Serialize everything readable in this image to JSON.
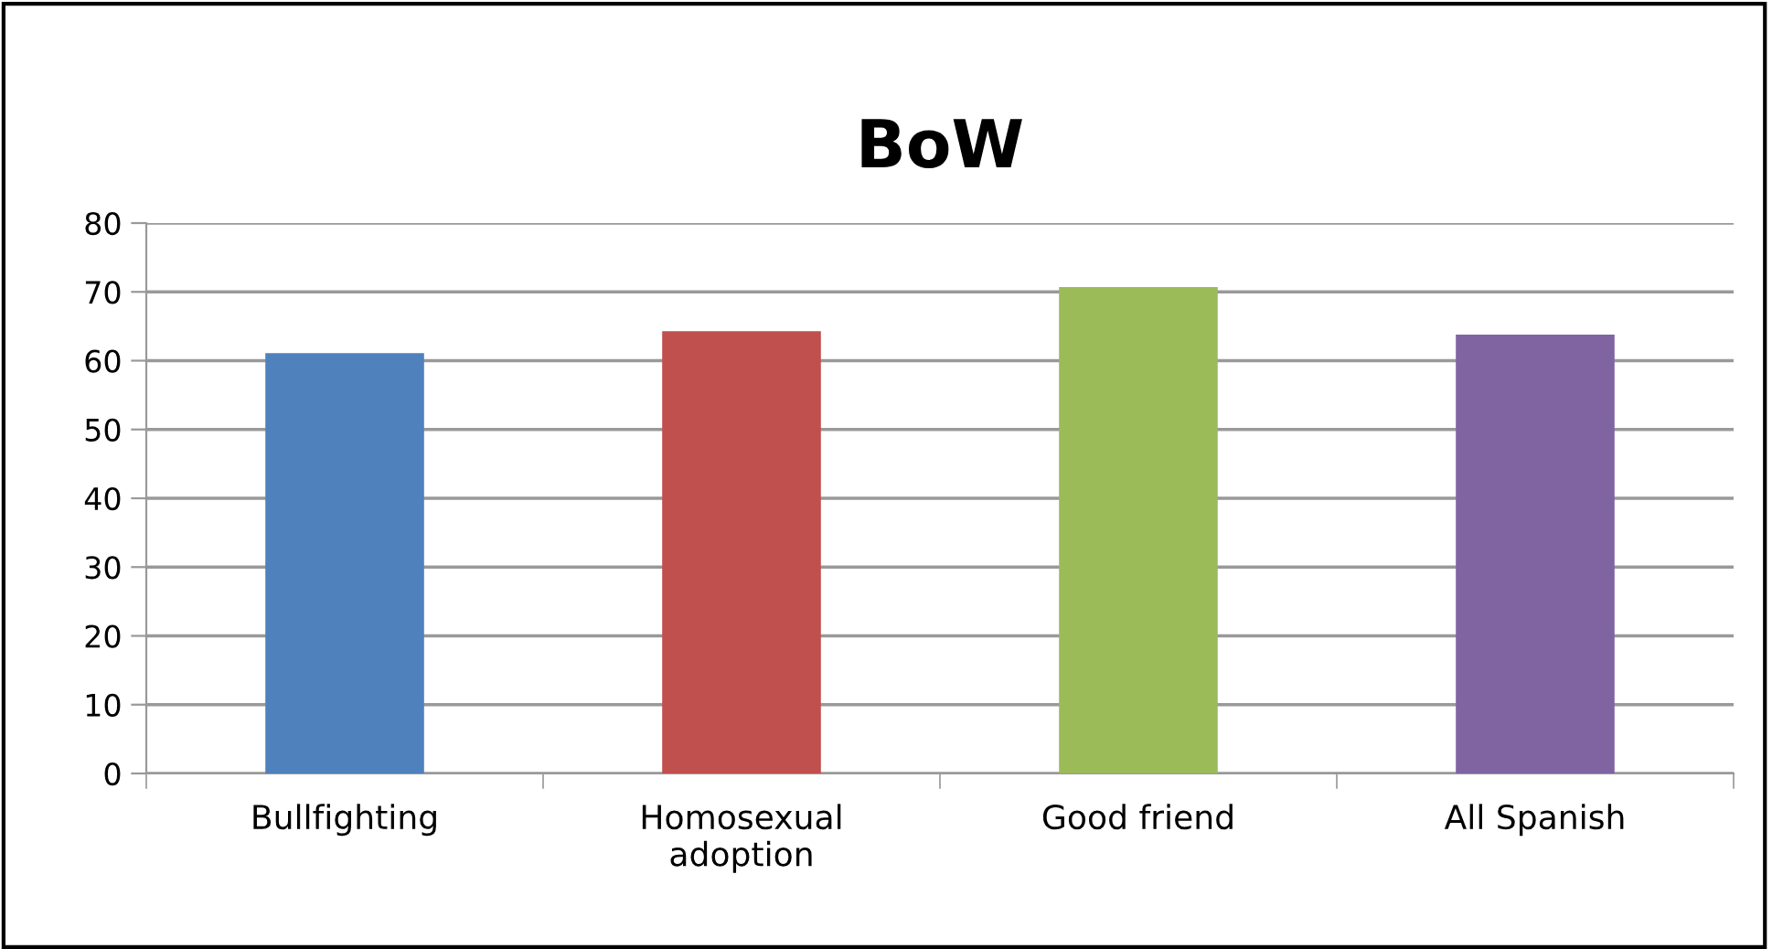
{
  "chart_data": {
    "type": "bar",
    "title": "BoW",
    "categories": [
      "Bullfighting",
      "Homosexual adoption",
      "Good friend",
      "All Spanish"
    ],
    "values": [
      61.1,
      64.3,
      70.7,
      63.8
    ],
    "colors": [
      "#4f81bd",
      "#c0504d",
      "#9bbb59",
      "#8064a2"
    ],
    "ylim": [
      0,
      80
    ],
    "yticks": [
      0,
      10,
      20,
      30,
      40,
      50,
      60,
      70,
      80
    ],
    "grid": "y"
  }
}
